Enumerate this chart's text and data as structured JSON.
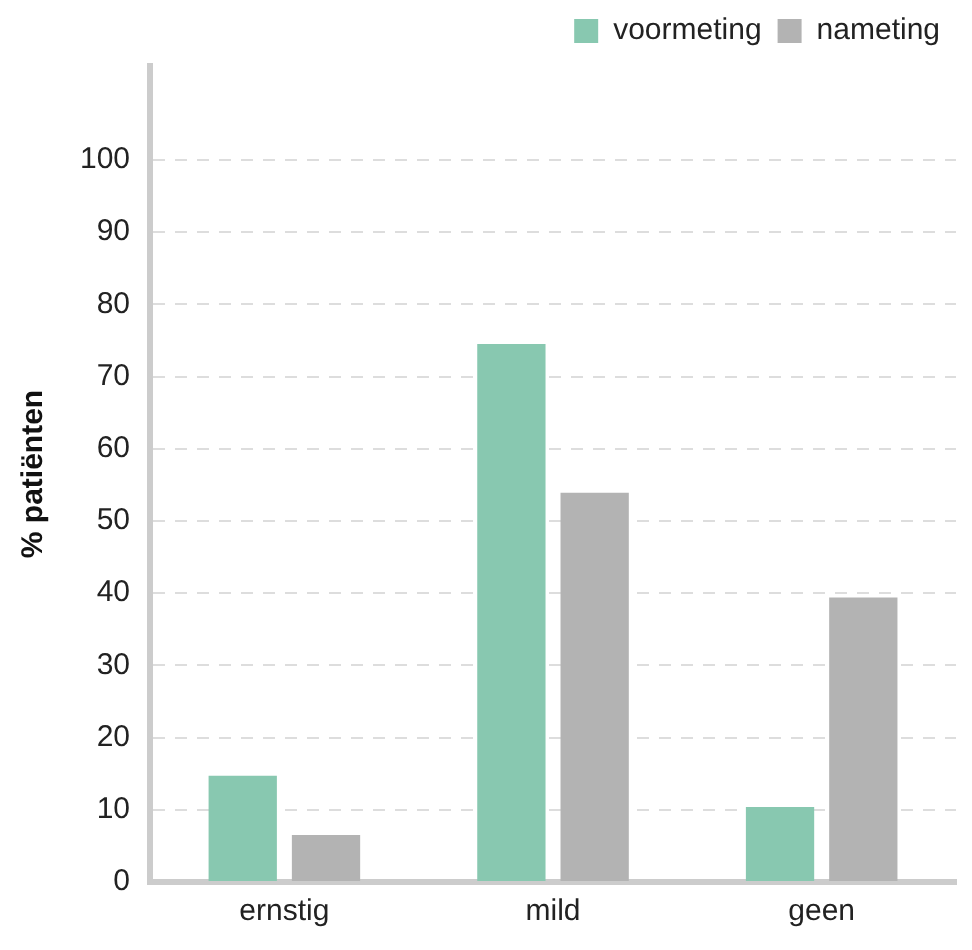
{
  "chart_data": {
    "type": "bar",
    "ylabel": "% patiënten",
    "categories": [
      "ernstig",
      "mild",
      "geen"
    ],
    "series": [
      {
        "name": "voormeting",
        "color": "#88c8b0",
        "values": [
          14.7,
          74.5,
          10.4
        ]
      },
      {
        "name": "nameting",
        "color": "#b3b3b3",
        "values": [
          6.5,
          53.9,
          39.4
        ]
      }
    ],
    "ylim": [
      0,
      113
    ],
    "yticks": [
      0,
      10,
      20,
      30,
      40,
      50,
      60,
      70,
      80,
      90,
      100
    ],
    "grid": "y",
    "legend": "top right"
  }
}
